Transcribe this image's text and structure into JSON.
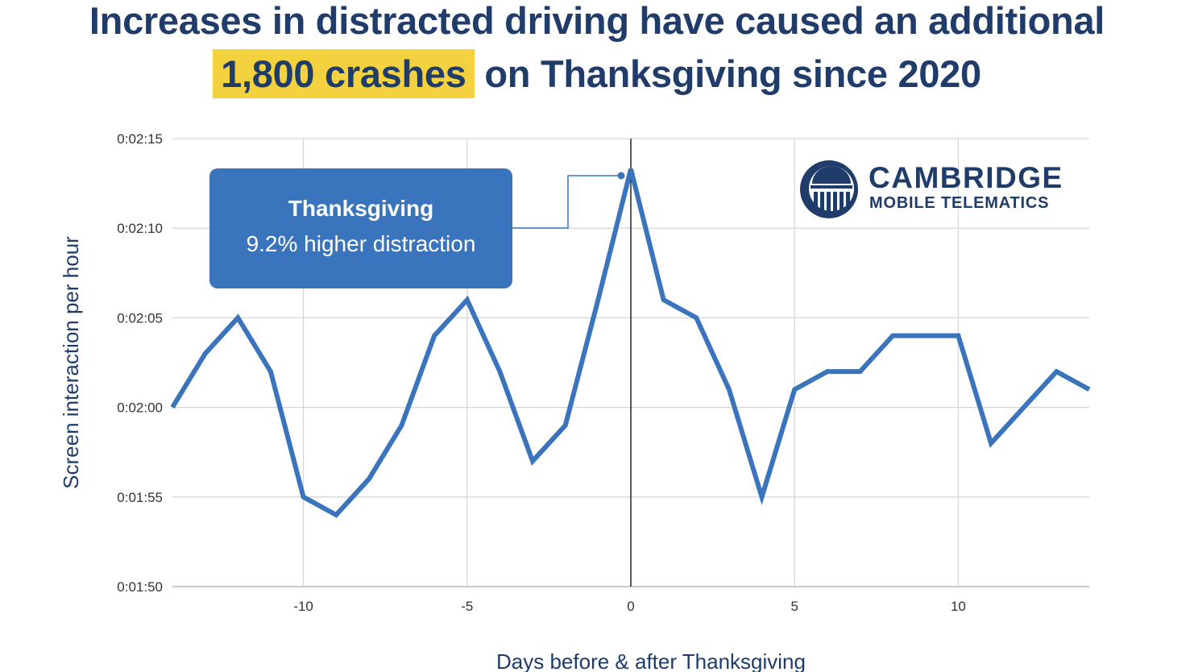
{
  "headline": {
    "line1": "Increases in distracted driving have caused an additional",
    "highlight": "1,800 crashes",
    "line2_rest": " on Thanksgiving since 2020"
  },
  "callout": {
    "title": "Thanksgiving",
    "subtitle": "9.2% higher distraction"
  },
  "logo": {
    "top": "CAMBRIDGE",
    "bottom": "MOBILE TELEMATICS"
  },
  "colors": {
    "title": "#1f3c6b",
    "highlight": "#f4d23f",
    "line": "#3a74bc",
    "grid": "#d0d0d0",
    "callout_bg": "#3a74bc"
  },
  "chart_data": {
    "type": "line",
    "title": "Increases in distracted driving have caused an additional 1,800 crashes on Thanksgiving since 2020",
    "xlabel": "Days before & after Thanksgiving",
    "ylabel": "Screen interaction per hour",
    "x": [
      -14,
      -13,
      -12,
      -11,
      -10,
      -9,
      -8,
      -7,
      -6,
      -5,
      -4,
      -3,
      -2,
      -1,
      0,
      1,
      2,
      3,
      4,
      5,
      6,
      7,
      8,
      9,
      10,
      11,
      12,
      13,
      14
    ],
    "series": [
      {
        "name": "Screen interaction per hour (seconds)",
        "values": [
          120,
          123,
          125,
          122,
          115,
          114,
          116,
          119,
          124,
          126,
          122,
          117,
          119,
          126,
          133.3,
          126,
          125,
          121,
          115,
          121,
          122,
          122,
          124,
          124,
          124,
          118,
          120,
          122,
          121
        ]
      }
    ],
    "xlim": [
      -14,
      14
    ],
    "ylim": [
      110,
      135
    ],
    "x_ticks": [
      "-10",
      "-5",
      "0",
      "5",
      "10"
    ],
    "x_tick_values": [
      -10,
      -5,
      0,
      5,
      10
    ],
    "y_ticks": [
      "0:01:50",
      "0:01:55",
      "0:02:00",
      "0:02:05",
      "0:02:10",
      "0:02:15"
    ],
    "y_tick_values": [
      110,
      115,
      120,
      125,
      130,
      135
    ],
    "grid": true,
    "annotations": [
      {
        "x": 0,
        "text": "Thanksgiving 9.2% higher distraction"
      }
    ],
    "reference_line_x": 0
  }
}
